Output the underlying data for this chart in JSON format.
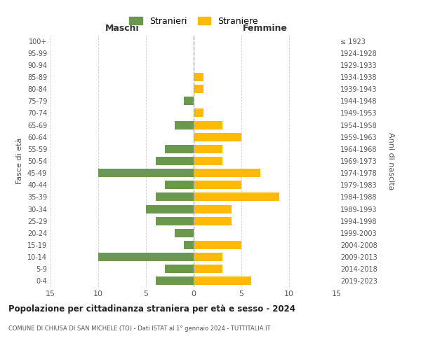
{
  "age_groups": [
    "100+",
    "95-99",
    "90-94",
    "85-89",
    "80-84",
    "75-79",
    "70-74",
    "65-69",
    "60-64",
    "55-59",
    "50-54",
    "45-49",
    "40-44",
    "35-39",
    "30-34",
    "25-29",
    "20-24",
    "15-19",
    "10-14",
    "5-9",
    "0-4"
  ],
  "birth_years": [
    "≤ 1923",
    "1924-1928",
    "1929-1933",
    "1934-1938",
    "1939-1943",
    "1944-1948",
    "1949-1953",
    "1954-1958",
    "1959-1963",
    "1964-1968",
    "1969-1973",
    "1974-1978",
    "1979-1983",
    "1984-1988",
    "1989-1993",
    "1994-1998",
    "1999-2003",
    "2004-2008",
    "2009-2013",
    "2014-2018",
    "2019-2023"
  ],
  "maschi": [
    0,
    0,
    0,
    0,
    0,
    1,
    0,
    2,
    0,
    3,
    4,
    10,
    3,
    4,
    5,
    4,
    2,
    1,
    10,
    3,
    4
  ],
  "femmine": [
    0,
    0,
    0,
    1,
    1,
    0,
    1,
    3,
    5,
    3,
    3,
    7,
    5,
    9,
    4,
    4,
    0,
    5,
    3,
    3,
    6
  ],
  "maschi_color": "#6a994e",
  "femmine_color": "#ffba08",
  "background_color": "#ffffff",
  "grid_color": "#cccccc",
  "title": "Popolazione per cittadinanza straniera per età e sesso - 2024",
  "subtitle": "COMUNE DI CHIUSA DI SAN MICHELE (TO) - Dati ISTAT al 1° gennaio 2024 - TUTTITALIA.IT",
  "xlabel_left": "Maschi",
  "xlabel_right": "Femmine",
  "ylabel_left": "Fasce di età",
  "ylabel_right": "Anni di nascita",
  "legend_maschi": "Stranieri",
  "legend_femmine": "Straniere",
  "xlim": 15,
  "bar_height": 0.7
}
